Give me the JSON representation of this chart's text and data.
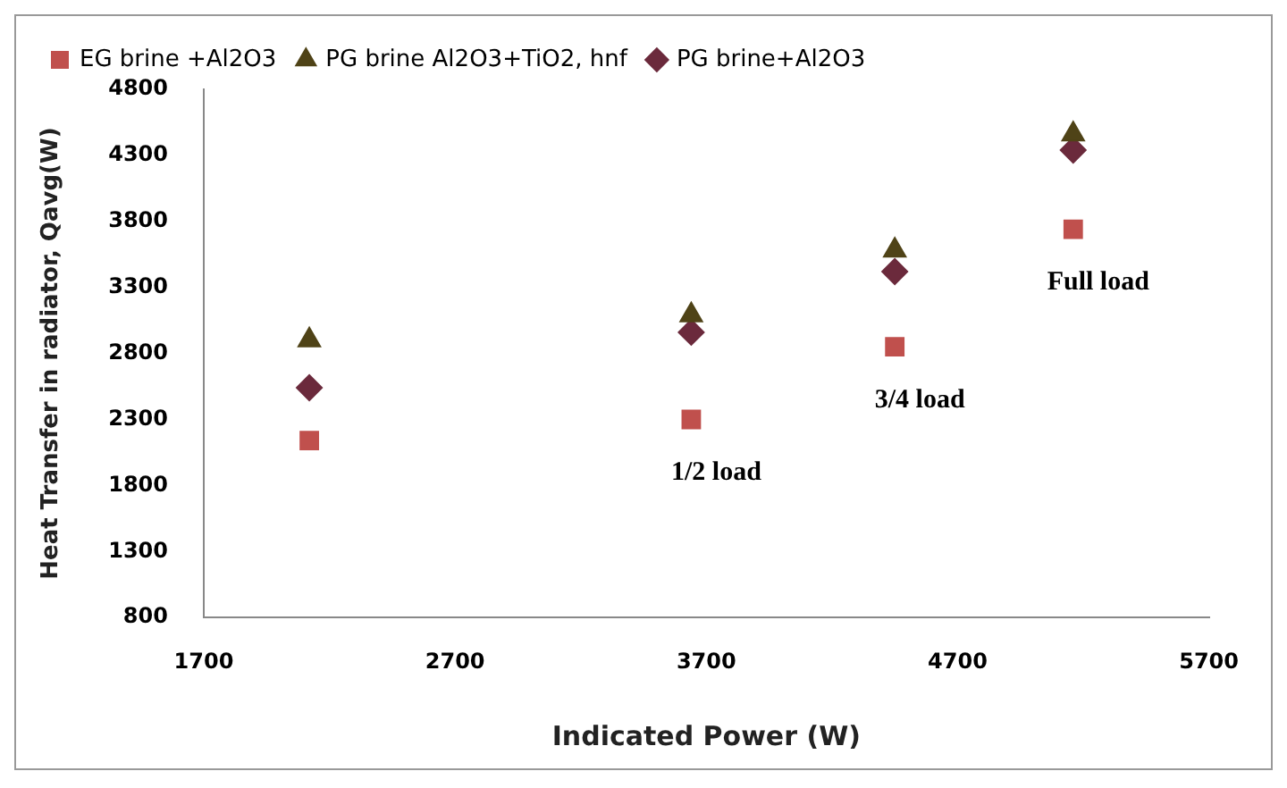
{
  "chart_data": {
    "type": "scatter",
    "xlabel": "Indicated Power (W)",
    "ylabel": "Heat Transfer in radiator, Qavg(W)",
    "x": [
      2120,
      3640,
      4450,
      5160
    ],
    "series": [
      {
        "name": "EG brine +Al2O3",
        "color": "#c0504d",
        "marker": "square",
        "values": [
          2140,
          2300,
          2850,
          3740
        ]
      },
      {
        "name": "PG brine Al2O3+TiO2, hnf",
        "color": "#4f4317",
        "marker": "triangle",
        "values": [
          2900,
          3090,
          3580,
          4460
        ]
      },
      {
        "name": "PG brine+Al2O3",
        "color": "#6b2a3c",
        "marker": "diamond",
        "values": [
          2540,
          2960,
          3420,
          4340
        ]
      }
    ],
    "xlim": [
      1700,
      5700
    ],
    "xticks": [
      1700,
      2700,
      3700,
      4700,
      5700
    ],
    "ylim": [
      800,
      4800
    ],
    "yticks": [
      800,
      1300,
      1800,
      2300,
      2800,
      3300,
      3800,
      4300,
      4800
    ],
    "grid": false,
    "legend": "top",
    "annotations": [
      {
        "text": "1/2 load",
        "x": 3640,
        "y": 2300
      },
      {
        "text": "3/4 load",
        "x": 4450,
        "y": 2850
      },
      {
        "text": "Full load",
        "x": 5160,
        "y": 3740
      }
    ]
  }
}
